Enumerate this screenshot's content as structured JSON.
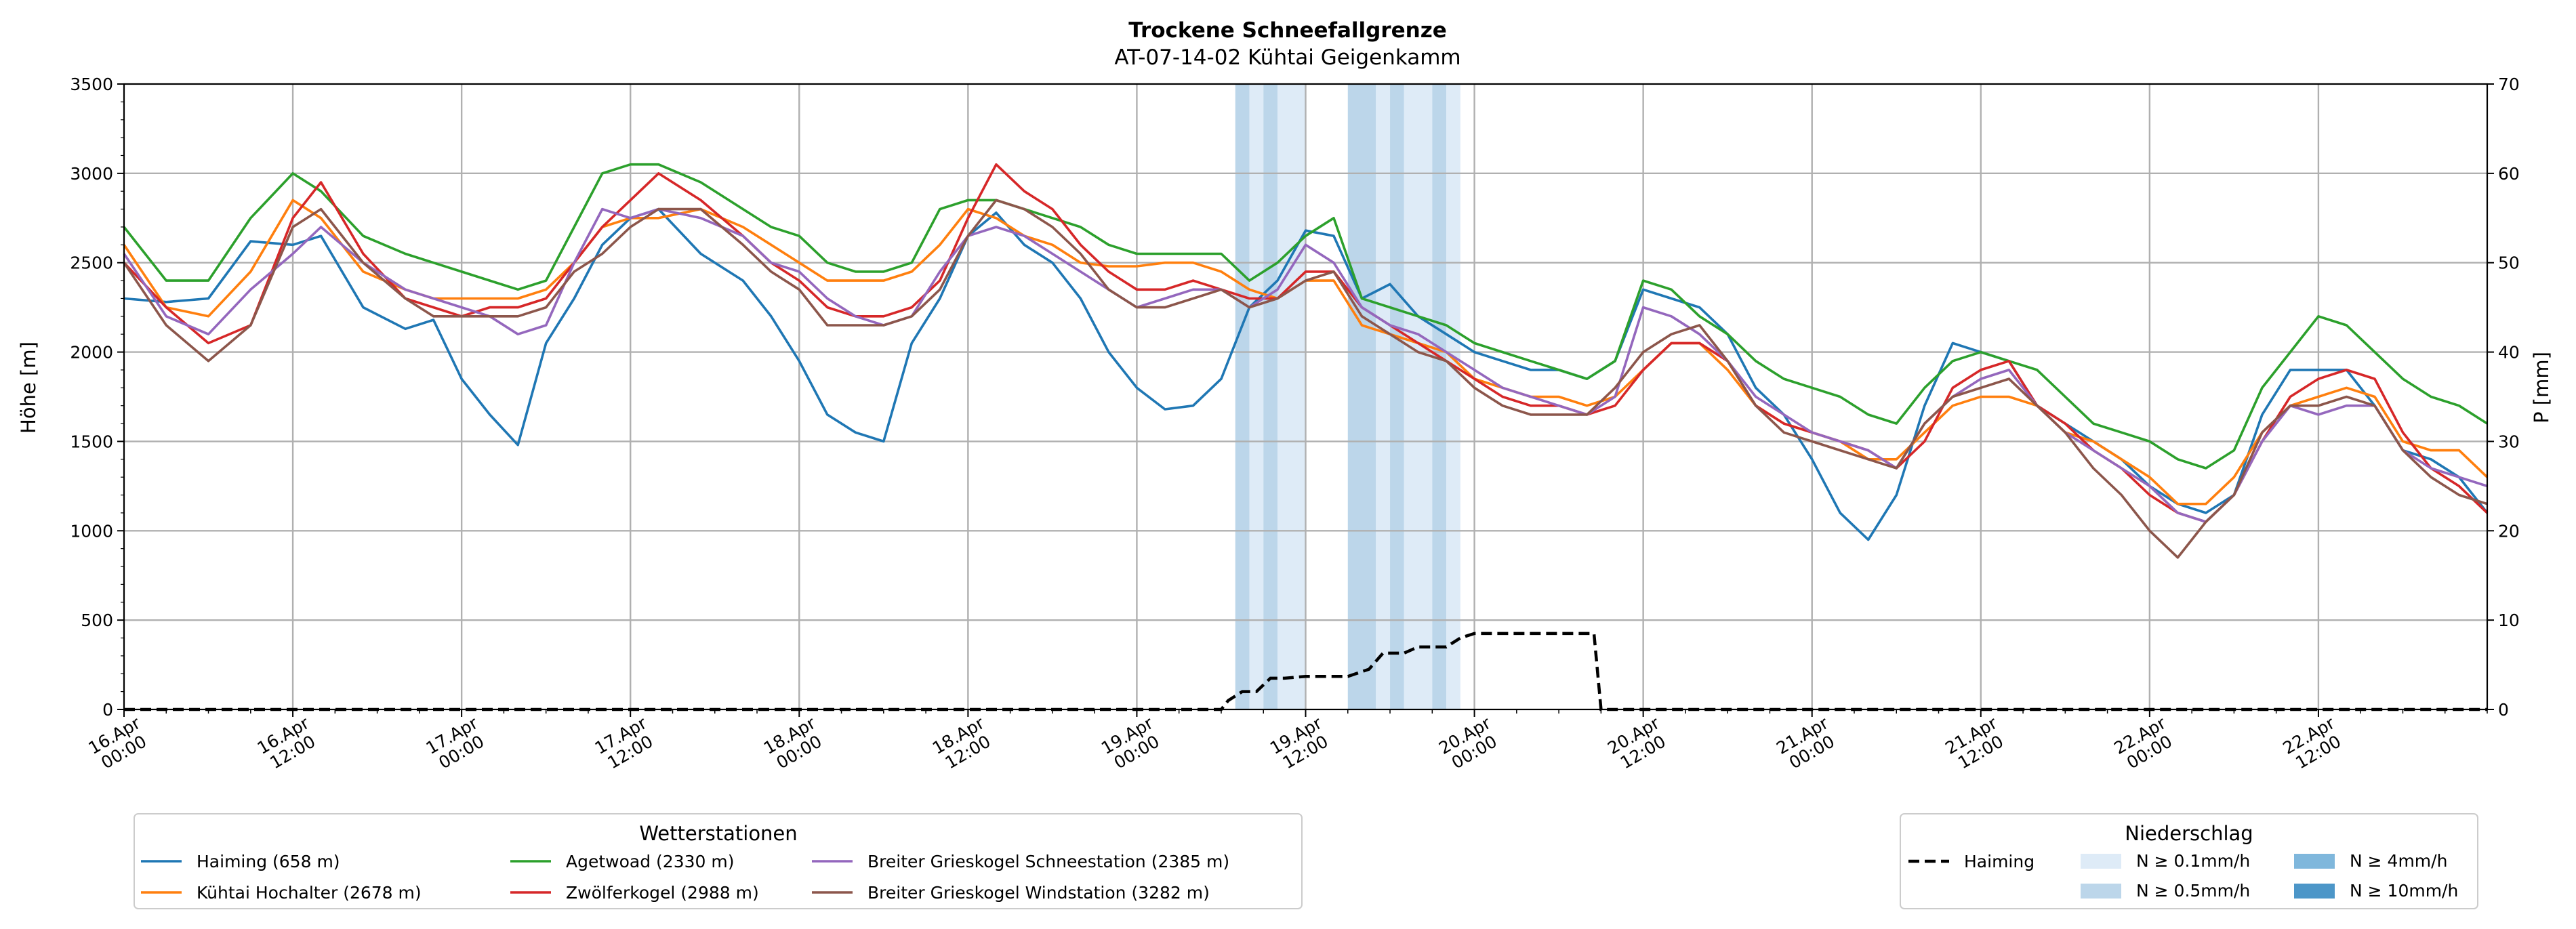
{
  "chart_data": {
    "type": "line",
    "title": "Trockene Schneefallgrenze",
    "subtitle": "AT-07-14-02 Kühtai Geigenkamm",
    "ylabel": "Höhe [m]",
    "y2label": "P [mm]",
    "ylim": [
      0,
      3500
    ],
    "y2lim": [
      0,
      70
    ],
    "xlim": [
      0,
      168
    ],
    "yticks": [
      "0",
      "500",
      "1000",
      "1500",
      "2000",
      "2500",
      "3000",
      "3500"
    ],
    "y2ticks": [
      "0",
      "10",
      "20",
      "30",
      "40",
      "50",
      "60",
      "70"
    ],
    "xticks": [
      {
        "h": 0,
        "l1": "16.Apr",
        "l2": "00:00"
      },
      {
        "h": 12,
        "l1": "16.Apr",
        "l2": "12:00"
      },
      {
        "h": 24,
        "l1": "17.Apr",
        "l2": "00:00"
      },
      {
        "h": 36,
        "l1": "17.Apr",
        "l2": "12:00"
      },
      {
        "h": 48,
        "l1": "18.Apr",
        "l2": "00:00"
      },
      {
        "h": 60,
        "l1": "18.Apr",
        "l2": "12:00"
      },
      {
        "h": 72,
        "l1": "19.Apr",
        "l2": "00:00"
      },
      {
        "h": 84,
        "l1": "19.Apr",
        "l2": "12:00"
      },
      {
        "h": 96,
        "l1": "20.Apr",
        "l2": "00:00"
      },
      {
        "h": 108,
        "l1": "20.Apr",
        "l2": "12:00"
      },
      {
        "h": 120,
        "l1": "21.Apr",
        "l2": "00:00"
      },
      {
        "h": 132,
        "l1": "21.Apr",
        "l2": "12:00"
      },
      {
        "h": 144,
        "l1": "22.Apr",
        "l2": "00:00"
      },
      {
        "h": 156,
        "l1": "22.Apr",
        "l2": "12:00"
      }
    ],
    "x_unit": "hours since 16.Apr 00:00",
    "series": [
      {
        "name": "Haiming (658 m)",
        "color": "#1f77b4",
        "x": [
          0,
          3,
          6,
          9,
          12,
          14,
          17,
          20,
          22,
          24,
          26,
          28,
          30,
          32,
          34,
          36,
          38,
          41,
          44,
          46,
          48,
          50,
          52,
          54,
          56,
          58,
          60,
          62,
          64,
          66,
          68,
          70,
          72,
          74,
          76,
          78,
          80,
          82,
          84,
          86,
          88,
          90,
          92,
          94,
          96,
          98,
          100,
          102,
          104,
          106,
          108,
          110,
          112,
          114,
          116,
          118,
          120,
          122,
          124,
          126,
          128,
          130,
          132,
          134,
          136,
          138,
          140,
          142,
          144,
          146,
          148,
          150,
          152,
          154,
          156,
          158,
          160,
          162,
          164,
          166,
          168
        ],
        "y": [
          2300,
          2280,
          2300,
          2620,
          2600,
          2650,
          2250,
          2130,
          2180,
          1850,
          1650,
          1480,
          2050,
          2300,
          2600,
          2750,
          2800,
          2550,
          2400,
          2200,
          1950,
          1650,
          1550,
          1500,
          2050,
          2300,
          2650,
          2780,
          2600,
          2500,
          2300,
          2000,
          1800,
          1680,
          1700,
          1850,
          2250,
          2400,
          2680,
          2650,
          2300,
          2380,
          2200,
          2100,
          2000,
          1950,
          1900,
          1900,
          1850,
          1950,
          2350,
          2300,
          2250,
          2100,
          1800,
          1650,
          1400,
          1100,
          950,
          1200,
          1700,
          2050,
          2000,
          1950,
          1700,
          1600,
          1500,
          1400,
          1250,
          1150,
          1100,
          1200,
          1650,
          1900,
          1900,
          1900,
          1700,
          1450,
          1400,
          1300,
          1100
        ]
      },
      {
        "name": "Kühtai Hochalter (2678 m)",
        "color": "#ff7f0e",
        "x": [
          0,
          3,
          6,
          9,
          12,
          14,
          17,
          20,
          22,
          24,
          26,
          28,
          30,
          32,
          34,
          36,
          38,
          41,
          44,
          46,
          48,
          50,
          52,
          54,
          56,
          58,
          60,
          62,
          64,
          66,
          68,
          70,
          72,
          74,
          76,
          78,
          80,
          82,
          84,
          86,
          88,
          90,
          92,
          94,
          96,
          98,
          100,
          102,
          104,
          106,
          108,
          110,
          112,
          114,
          116,
          118,
          120,
          122,
          124,
          126,
          128,
          130,
          132,
          134,
          136,
          138,
          140,
          142,
          144,
          146,
          148,
          150,
          152,
          154,
          156,
          158,
          160,
          162,
          164,
          166,
          168
        ],
        "y": [
          2600,
          2250,
          2200,
          2450,
          2850,
          2750,
          2450,
          2350,
          2300,
          2300,
          2300,
          2300,
          2350,
          2500,
          2700,
          2750,
          2750,
          2800,
          2700,
          2600,
          2500,
          2400,
          2400,
          2400,
          2450,
          2600,
          2800,
          2750,
          2650,
          2600,
          2500,
          2480,
          2480,
          2500,
          2500,
          2450,
          2350,
          2300,
          2400,
          2400,
          2150,
          2100,
          2050,
          2000,
          1850,
          1800,
          1750,
          1750,
          1700,
          1750,
          1900,
          2050,
          2050,
          1900,
          1700,
          1600,
          1550,
          1500,
          1400,
          1400,
          1550,
          1700,
          1750,
          1750,
          1700,
          1550,
          1500,
          1400,
          1300,
          1150,
          1150,
          1300,
          1550,
          1700,
          1750,
          1800,
          1750,
          1500,
          1450,
          1450,
          1300
        ]
      },
      {
        "name": "Agetwoad (2330 m)",
        "color": "#2ca02c",
        "x": [
          0,
          3,
          6,
          9,
          12,
          14,
          17,
          20,
          22,
          24,
          26,
          28,
          30,
          32,
          34,
          36,
          38,
          41,
          44,
          46,
          48,
          50,
          52,
          54,
          56,
          58,
          60,
          62,
          64,
          66,
          68,
          70,
          72,
          74,
          76,
          78,
          80,
          82,
          84,
          86,
          88,
          90,
          92,
          94,
          96,
          98,
          100,
          102,
          104,
          106,
          108,
          110,
          112,
          114,
          116,
          118,
          120,
          122,
          124,
          126,
          128,
          130,
          132,
          134,
          136,
          138,
          140,
          142,
          144,
          146,
          148,
          150,
          152,
          154,
          156,
          158,
          160,
          162,
          164,
          166,
          168
        ],
        "y": [
          2700,
          2400,
          2400,
          2750,
          3000,
          2900,
          2650,
          2550,
          2500,
          2450,
          2400,
          2350,
          2400,
          2700,
          3000,
          3050,
          3050,
          2950,
          2800,
          2700,
          2650,
          2500,
          2450,
          2450,
          2500,
          2800,
          2850,
          2850,
          2800,
          2750,
          2700,
          2600,
          2550,
          2550,
          2550,
          2550,
          2400,
          2500,
          2650,
          2750,
          2300,
          2250,
          2200,
          2150,
          2050,
          2000,
          1950,
          1900,
          1850,
          1950,
          2400,
          2350,
          2200,
          2100,
          1950,
          1850,
          1800,
          1750,
          1650,
          1600,
          1800,
          1950,
          2000,
          1950,
          1900,
          1750,
          1600,
          1550,
          1500,
          1400,
          1350,
          1450,
          1800,
          2000,
          2200,
          2150,
          2000,
          1850,
          1750,
          1700,
          1600
        ]
      },
      {
        "name": "Zwölferkogel (2988 m)",
        "color": "#d62728",
        "x": [
          0,
          3,
          6,
          9,
          12,
          14,
          17,
          20,
          22,
          24,
          26,
          28,
          30,
          32,
          34,
          36,
          38,
          41,
          44,
          46,
          48,
          50,
          52,
          54,
          56,
          58,
          60,
          62,
          64,
          66,
          68,
          70,
          72,
          74,
          76,
          78,
          80,
          82,
          84,
          86,
          88,
          90,
          92,
          94,
          96,
          98,
          100,
          102,
          104,
          106,
          108,
          110,
          112,
          114,
          116,
          118,
          120,
          122,
          124,
          126,
          128,
          130,
          132,
          134,
          136,
          138,
          140,
          142,
          144,
          146,
          148,
          150,
          152,
          154,
          156,
          158,
          160,
          162,
          164,
          166,
          168
        ],
        "y": [
          2500,
          2250,
          2050,
          2150,
          2750,
          2950,
          2550,
          2300,
          2250,
          2200,
          2250,
          2250,
          2300,
          2500,
          2700,
          2850,
          3000,
          2850,
          2650,
          2500,
          2400,
          2250,
          2200,
          2200,
          2250,
          2400,
          2750,
          3050,
          2900,
          2800,
          2600,
          2450,
          2350,
          2350,
          2400,
          2350,
          2300,
          2300,
          2450,
          2450,
          2250,
          2150,
          2050,
          1950,
          1850,
          1750,
          1700,
          1700,
          1650,
          1700,
          1900,
          2050,
          2050,
          1950,
          1700,
          1600,
          1550,
          1500,
          1450,
          1350,
          1500,
          1800,
          1900,
          1950,
          1700,
          1600,
          1450,
          1350,
          1200,
          1100,
          1050,
          1200,
          1500,
          1750,
          1850,
          1900,
          1850,
          1550,
          1350,
          1250,
          1100
        ]
      },
      {
        "name": "Breiter Grieskogel Schneestation (2385 m)",
        "color": "#9467bd",
        "x": [
          0,
          3,
          6,
          9,
          12,
          14,
          17,
          20,
          22,
          24,
          26,
          28,
          30,
          32,
          34,
          36,
          38,
          41,
          44,
          46,
          48,
          50,
          52,
          54,
          56,
          58,
          60,
          62,
          64,
          66,
          68,
          70,
          72,
          74,
          76,
          78,
          80,
          82,
          84,
          86,
          88,
          90,
          92,
          94,
          96,
          98,
          100,
          102,
          104,
          106,
          108,
          110,
          112,
          114,
          116,
          118,
          120,
          122,
          124,
          126,
          128,
          130,
          132,
          134,
          136,
          138,
          140,
          142,
          144,
          146,
          148,
          150,
          152,
          154,
          156,
          158,
          160,
          162,
          164,
          166,
          168
        ],
        "y": [
          2550,
          2200,
          2100,
          2350,
          2550,
          2700,
          2500,
          2350,
          2300,
          2250,
          2200,
          2100,
          2150,
          2500,
          2800,
          2750,
          2800,
          2750,
          2650,
          2500,
          2450,
          2300,
          2200,
          2150,
          2200,
          2450,
          2650,
          2700,
          2650,
          2550,
          2450,
          2350,
          2250,
          2300,
          2350,
          2350,
          2250,
          2350,
          2600,
          2500,
          2250,
          2150,
          2100,
          2000,
          1900,
          1800,
          1750,
          1700,
          1650,
          1750,
          2250,
          2200,
          2100,
          1950,
          1750,
          1650,
          1550,
          1500,
          1450,
          1350,
          1600,
          1750,
          1850,
          1900,
          1700,
          1550,
          1450,
          1350,
          1250,
          1100,
          1050,
          1200,
          1500,
          1700,
          1650,
          1700,
          1700,
          1450,
          1350,
          1300,
          1250
        ]
      },
      {
        "name": "Breiter Grieskogel Windstation (3282 m)",
        "color": "#8c564b",
        "x": [
          0,
          3,
          6,
          9,
          12,
          14,
          17,
          20,
          22,
          24,
          26,
          28,
          30,
          32,
          34,
          36,
          38,
          41,
          44,
          46,
          48,
          50,
          52,
          54,
          56,
          58,
          60,
          62,
          64,
          66,
          68,
          70,
          72,
          74,
          76,
          78,
          80,
          82,
          84,
          86,
          88,
          90,
          92,
          94,
          96,
          98,
          100,
          102,
          104,
          106,
          108,
          110,
          112,
          114,
          116,
          118,
          120,
          122,
          124,
          126,
          128,
          130,
          132,
          134,
          136,
          138,
          140,
          142,
          144,
          146,
          148,
          150,
          152,
          154,
          156,
          158,
          160,
          162,
          164,
          166,
          168
        ],
        "y": [
          2500,
          2150,
          1950,
          2150,
          2700,
          2800,
          2500,
          2300,
          2200,
          2200,
          2200,
          2200,
          2250,
          2450,
          2550,
          2700,
          2800,
          2800,
          2600,
          2450,
          2350,
          2150,
          2150,
          2150,
          2200,
          2350,
          2650,
          2850,
          2800,
          2700,
          2550,
          2350,
          2250,
          2250,
          2300,
          2350,
          2250,
          2300,
          2400,
          2450,
          2200,
          2100,
          2000,
          1950,
          1800,
          1700,
          1650,
          1650,
          1650,
          1800,
          2000,
          2100,
          2150,
          1950,
          1700,
          1550,
          1500,
          1450,
          1400,
          1350,
          1600,
          1750,
          1800,
          1850,
          1700,
          1550,
          1350,
          1200,
          1000,
          850,
          1050,
          1200,
          1550,
          1700,
          1700,
          1750,
          1700,
          1450,
          1300,
          1200,
          1150
        ]
      }
    ],
    "precip_haiming": {
      "name": "Haiming",
      "x": [
        0,
        78,
        78.5,
        79.5,
        80.5,
        81.5,
        82.5,
        84,
        86,
        87,
        88.5,
        89.5,
        91,
        92,
        93,
        94,
        95,
        96,
        104,
        104.5,
        105,
        168
      ],
      "y": [
        0,
        0,
        1,
        2,
        2,
        3.5,
        3.5,
        3.7,
        3.7,
        3.7,
        4.5,
        6.3,
        6.3,
        7,
        7,
        7,
        8,
        8.5,
        8.5,
        8.5,
        0,
        0
      ]
    },
    "precip_bands": [
      {
        "x0": 79.0,
        "x1": 80.0,
        "class": "N ≥ 0.5mm/h"
      },
      {
        "x0": 80.0,
        "x1": 81.0,
        "class": "N ≥ 0.1mm/h"
      },
      {
        "x0": 81.0,
        "x1": 82.0,
        "class": "N ≥ 0.5mm/h"
      },
      {
        "x0": 82.0,
        "x1": 84.0,
        "class": "N ≥ 0.1mm/h"
      },
      {
        "x0": 87.0,
        "x1": 89.0,
        "class": "N ≥ 0.5mm/h"
      },
      {
        "x0": 89.0,
        "x1": 90.0,
        "class": "N ≥ 0.1mm/h"
      },
      {
        "x0": 90.0,
        "x1": 91.0,
        "class": "N ≥ 0.5mm/h"
      },
      {
        "x0": 91.0,
        "x1": 93.0,
        "class": "N ≥ 0.1mm/h"
      },
      {
        "x0": 93.0,
        "x1": 94.0,
        "class": "N ≥ 0.5mm/h"
      },
      {
        "x0": 94.0,
        "x1": 95.0,
        "class": "N ≥ 0.1mm/h"
      }
    ],
    "legend_stations_title": "Wetterstationen",
    "legend_precip_title": "Niederschlag",
    "precip_classes": [
      {
        "label": "N ≥ 0.1mm/h",
        "color": "#deebf7"
      },
      {
        "label": "N ≥ 0.5mm/h",
        "color": "#bcd6ea"
      },
      {
        "label": "N ≥ 4mm/h",
        "color": "#7fb7dc"
      },
      {
        "label": "N ≥ 10mm/h",
        "color": "#4c96c8"
      }
    ]
  }
}
